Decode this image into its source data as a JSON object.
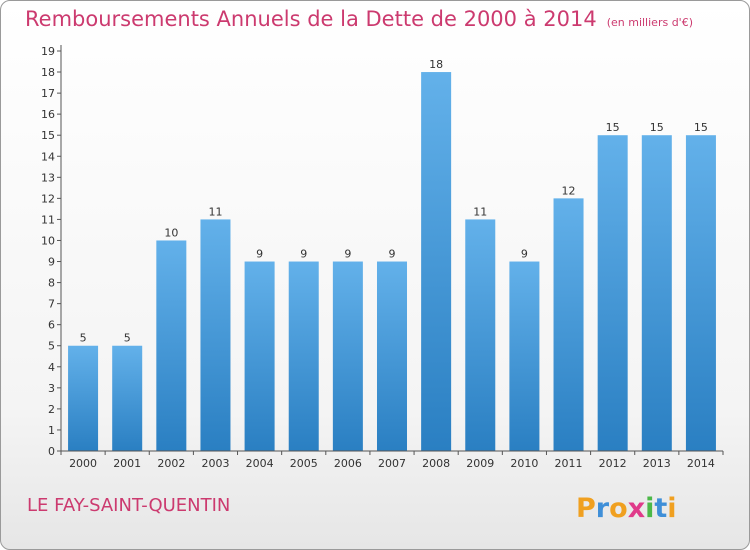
{
  "header": {
    "title": "Remboursements Annuels de la Dette de 2000 à 2014",
    "unit": "(en milliers d'€)"
  },
  "footer": {
    "commune": "LE FAY-SAINT-QUENTIN",
    "logo_text": "Proxiti"
  },
  "colors": {
    "title": "#cc3a6f",
    "bar_top": "#63b1ea",
    "bar_bottom": "#2a7fc2"
  },
  "chart_data": {
    "type": "bar",
    "title": "Remboursements Annuels de la Dette de 2000 à 2014",
    "xlabel": "",
    "ylabel": "",
    "categories": [
      "2000",
      "2001",
      "2002",
      "2003",
      "2004",
      "2005",
      "2006",
      "2007",
      "2008",
      "2009",
      "2010",
      "2011",
      "2012",
      "2013",
      "2014"
    ],
    "values": [
      5,
      5,
      10,
      11,
      9,
      9,
      9,
      9,
      18,
      11,
      9,
      12,
      15,
      15,
      15
    ],
    "ylim": [
      0,
      19
    ],
    "yticks": [
      0,
      1,
      2,
      3,
      4,
      5,
      6,
      7,
      8,
      9,
      10,
      11,
      12,
      13,
      14,
      15,
      16,
      17,
      18,
      19
    ],
    "grid": false,
    "legend": "none"
  }
}
